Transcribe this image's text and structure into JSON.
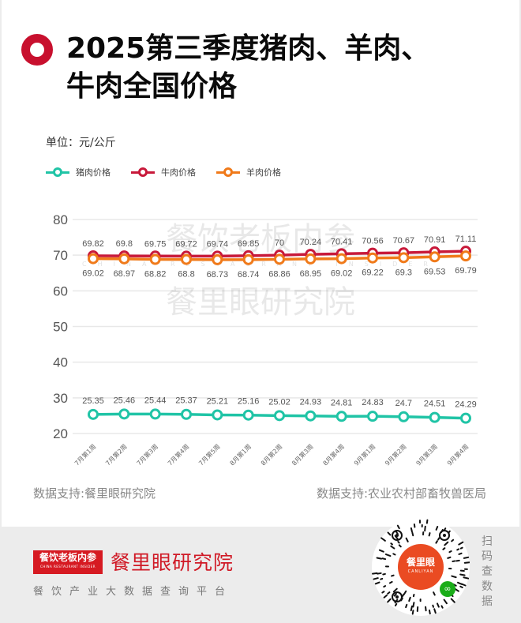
{
  "header": {
    "title": "2025第三季度猪肉、羊肉、牛肉全国价格",
    "title_line1": "2025第三季度猪肉、羊肉、",
    "title_line2": "牛肉全国价格",
    "icon": "red-ring-icon"
  },
  "unit_label": "单位：元/公斤",
  "legend": [
    {
      "label": "猪肉价格",
      "color": "#20c4a6"
    },
    {
      "label": "牛肉价格",
      "color": "#c8193a"
    },
    {
      "label": "羊肉价格",
      "color": "#f07a1a"
    }
  ],
  "watermark": {
    "line1": "餐饮老板内参",
    "line1_en": "CHINA RESTAURANT INSIDER",
    "line2": "餐里眼研究院"
  },
  "chart_data": {
    "type": "line",
    "title": "2025第三季度猪肉、羊肉、牛肉全国价格",
    "xlabel": "",
    "ylabel": "单位：元/公斤",
    "ylim": [
      20,
      80
    ],
    "yticks": [
      20,
      30,
      40,
      50,
      60,
      70,
      80
    ],
    "grid": true,
    "legend_position": "top-left",
    "categories": [
      "7月第1周",
      "7月第2周",
      "7月第3周",
      "7月第4周",
      "7月第5周",
      "8月第1周",
      "8月第2周",
      "8月第3周",
      "8月第4周",
      "9月第1周",
      "9月第2周",
      "9月第3周",
      "9月第4周"
    ],
    "series": [
      {
        "name": "猪肉价格",
        "color": "#20c4a6",
        "values": [
          25.35,
          25.46,
          25.44,
          25.37,
          25.21,
          25.16,
          25.02,
          24.93,
          24.81,
          24.83,
          24.7,
          24.51,
          24.29
        ]
      },
      {
        "name": "牛肉价格",
        "color": "#c8193a",
        "values": [
          69.82,
          69.8,
          69.75,
          69.72,
          69.74,
          69.85,
          70,
          70.24,
          70.41,
          70.56,
          70.67,
          70.91,
          71.11
        ]
      },
      {
        "name": "羊肉价格",
        "color": "#f07a1a",
        "values": [
          69.02,
          68.97,
          68.82,
          68.8,
          68.73,
          68.74,
          68.86,
          68.95,
          69.02,
          69.22,
          69.3,
          69.53,
          69.79
        ]
      }
    ]
  },
  "footer": {
    "source_left": "数据支持:餐里眼研究院",
    "source_right": "数据支持:农业农村部畜牧兽医局",
    "brand_box": "餐饮老板内参",
    "brand_box_sub": "CHINA RESTAURANT INSIDER",
    "brand_name": "餐里眼研究院",
    "slogan": "餐饮产业大数据查询平台",
    "qr_center": "餐里眼",
    "qr_center_en": "CANLIYAN",
    "scan_text": "扫码查数据"
  }
}
